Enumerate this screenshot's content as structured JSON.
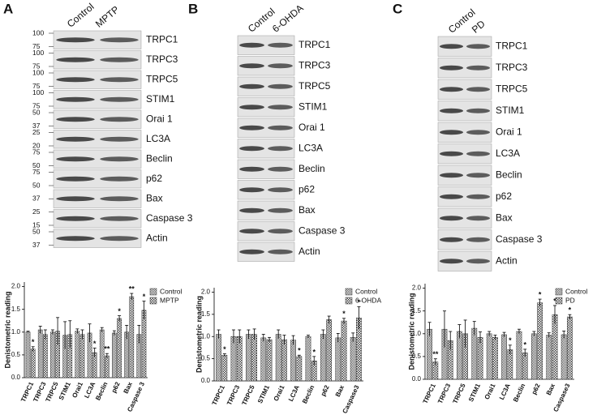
{
  "panels": [
    {
      "letter": "A",
      "lanes": [
        "Control",
        "MPTP"
      ],
      "blots": [
        {
          "label": "TRPC1",
          "markers": [
            100,
            75
          ]
        },
        {
          "label": "TRPC3",
          "markers": [
            100,
            75
          ]
        },
        {
          "label": "TRPC5",
          "markers": [
            100,
            75
          ]
        },
        {
          "label": "STIM1",
          "markers": [
            100,
            75
          ]
        },
        {
          "label": "Orai 1",
          "markers": [
            50,
            37
          ]
        },
        {
          "label": "LC3A",
          "markers": [
            25,
            20
          ]
        },
        {
          "label": "Beclin",
          "markers": [
            75,
            50
          ]
        },
        {
          "label": "p62",
          "markers": [
            75,
            50
          ]
        },
        {
          "label": "Bax",
          "markers": [
            37
          ]
        },
        {
          "label": "Caspase 3",
          "markers": [
            25,
            15
          ]
        },
        {
          "label": "Actin",
          "markers": [
            50,
            37
          ]
        }
      ]
    },
    {
      "letter": "B",
      "lanes": [
        "Control",
        "6-OHDA"
      ],
      "blots": [
        {
          "label": "TRPC1"
        },
        {
          "label": "TRPC3"
        },
        {
          "label": "TRPC5"
        },
        {
          "label": "STIM1"
        },
        {
          "label": "Orai 1"
        },
        {
          "label": "LC3A"
        },
        {
          "label": "Beclin"
        },
        {
          "label": "p62"
        },
        {
          "label": "Bax"
        },
        {
          "label": "Caspase 3"
        },
        {
          "label": "Actin"
        }
      ]
    },
    {
      "letter": "C",
      "lanes": [
        "Control",
        "PD"
      ],
      "blots": [
        {
          "label": "TRPC1"
        },
        {
          "label": "TRPC3"
        },
        {
          "label": "TRPC5"
        },
        {
          "label": "STIM1"
        },
        {
          "label": "Orai 1"
        },
        {
          "label": "LC3A"
        },
        {
          "label": "Beclin"
        },
        {
          "label": "p62"
        },
        {
          "label": "Bax"
        },
        {
          "label": "Caspase 3"
        },
        {
          "label": "Actin"
        }
      ]
    }
  ],
  "chart_data": [
    {
      "type": "bar",
      "y_label": "Denistometric reading",
      "categories": [
        "TRPC1",
        "TRPC3",
        "TRPC5",
        "STIM1",
        "Orai1",
        "LC3A",
        "Beclin",
        "p62",
        "Bax",
        "Caspase 3"
      ],
      "ylim": [
        0,
        2.1
      ],
      "yticks": [
        {
          "value": 0,
          "label": "0.0"
        },
        {
          "value": 0.5,
          "label": "0.5"
        },
        {
          "value": 1,
          "label": "1.0"
        },
        {
          "value": 1.5,
          "label": "1.5"
        },
        {
          "value": 2,
          "label": "2.0"
        }
      ],
      "series": [
        {
          "name": "Control",
          "color": "#555555",
          "values": [
            1.0,
            1.05,
            1.0,
            0.93,
            1.02,
            0.98,
            1.05,
            0.98,
            1.0,
            0.95
          ],
          "errors": [
            0.02,
            0.08,
            0.05,
            0.3,
            0.05,
            0.2,
            0.05,
            0.05,
            0.15,
            0.2
          ]
        },
        {
          "name": "MPTP",
          "color": "#444444",
          "values": [
            0.63,
            0.95,
            1.02,
            0.95,
            0.95,
            0.55,
            0.48,
            1.3,
            1.78,
            1.48
          ],
          "errors": [
            0.05,
            0.1,
            0.3,
            0.3,
            0.1,
            0.1,
            0.05,
            0.06,
            0.07,
            0.2
          ],
          "significance": [
            "*",
            null,
            null,
            null,
            null,
            "*",
            "**",
            "*",
            "**",
            "*"
          ]
        }
      ]
    },
    {
      "type": "bar",
      "y_label": "Denistometric reading",
      "categories": [
        "TRPC1",
        "TRPC3",
        "TRPC5",
        "STIM1",
        "Orai1",
        "LC3A",
        "Beclin",
        "p62",
        "Bax",
        "Caspase3"
      ],
      "ylim": [
        0,
        2.1
      ],
      "yticks": [
        {
          "value": 0,
          "label": "0.0"
        },
        {
          "value": 0.5,
          "label": "0.5"
        },
        {
          "value": 1,
          "label": "1.0"
        },
        {
          "value": 1.5,
          "label": "1.5"
        },
        {
          "value": 2,
          "label": "2.0"
        }
      ],
      "series": [
        {
          "name": "Control",
          "color": "#555555",
          "values": [
            1.05,
            1.0,
            1.05,
            0.97,
            1.05,
            0.92,
            1.0,
            1.05,
            0.97,
            0.98
          ],
          "errors": [
            0.1,
            0.15,
            0.1,
            0.08,
            0.1,
            0.1,
            0.03,
            0.1,
            0.1,
            0.1
          ]
        },
        {
          "name": "6-OHDA",
          "color": "#444444",
          "values": [
            0.58,
            1.0,
            1.05,
            0.93,
            0.93,
            0.55,
            0.45,
            1.38,
            1.35,
            1.42
          ],
          "errors": [
            0.03,
            0.15,
            0.12,
            0.05,
            0.1,
            0.03,
            0.1,
            0.08,
            0.06,
            0.25
          ],
          "significance": [
            "*",
            null,
            null,
            null,
            null,
            "*",
            "*",
            null,
            "*",
            "*"
          ]
        }
      ]
    },
    {
      "type": "bar",
      "y_label": "Denistometric reading",
      "categories": [
        "TRPC1",
        "TRPC3",
        "TRPC5",
        "STIM1",
        "Orai1",
        "LC3A",
        "Beclin",
        "p62",
        "Bax",
        "Caspase3"
      ],
      "ylim": [
        0,
        2.1
      ],
      "yticks": [
        {
          "value": 0,
          "label": "0.0"
        },
        {
          "value": 0.5,
          "label": "0.5"
        },
        {
          "value": 1,
          "label": "1.0"
        },
        {
          "value": 1.5,
          "label": "1.5"
        },
        {
          "value": 2,
          "label": "2.0"
        }
      ],
      "series": [
        {
          "name": "Control",
          "color": "#555555",
          "values": [
            1.1,
            1.1,
            1.05,
            1.12,
            1.0,
            0.98,
            1.05,
            1.0,
            0.97,
            0.98
          ],
          "errors": [
            0.15,
            0.4,
            0.15,
            0.15,
            0.05,
            0.05,
            0.05,
            0.05,
            0.05,
            0.08
          ]
        },
        {
          "name": "PD",
          "color": "#444444",
          "values": [
            0.38,
            0.85,
            1.0,
            0.92,
            0.92,
            0.65,
            0.58,
            1.68,
            1.42,
            1.37
          ],
          "errors": [
            0.07,
            0.2,
            0.3,
            0.12,
            0.05,
            0.1,
            0.08,
            0.08,
            0.2,
            0.05
          ],
          "significance": [
            "**",
            null,
            null,
            null,
            null,
            "*",
            "*",
            "*",
            "*",
            "*"
          ]
        }
      ]
    }
  ]
}
